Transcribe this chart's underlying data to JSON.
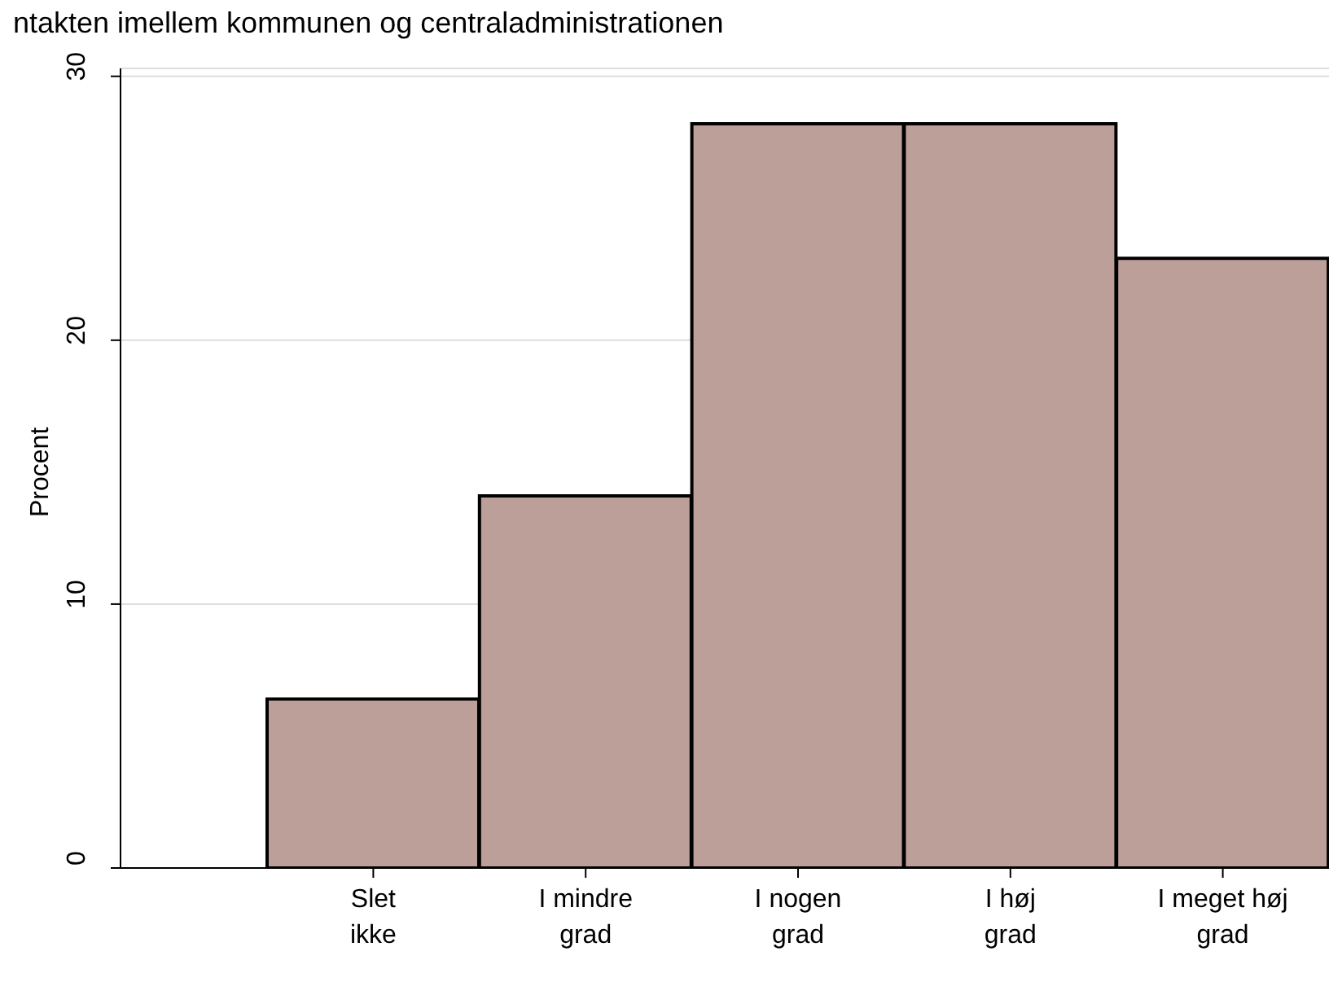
{
  "chart_data": {
    "type": "bar",
    "title": "ntakten imellem kommunen og centraladministrationen",
    "ylabel": "Procent",
    "categories": [
      "Slet\nikke",
      "I mindre\ngrad",
      "I nogen\ngrad",
      "I høj\ngrad",
      "I meget høj\ngrad"
    ],
    "values": [
      6.4,
      14.1,
      28.2,
      28.2,
      23.1
    ],
    "color": "#bc9f99",
    "ylim": [
      0,
      30.3
    ],
    "yticks": [
      0,
      10,
      20,
      30
    ],
    "grid": "y"
  }
}
